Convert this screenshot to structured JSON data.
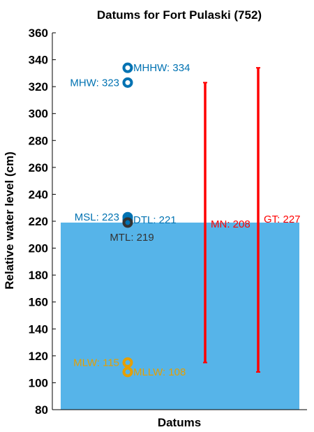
{
  "chart_data": {
    "type": "scatter",
    "title": "Datums for Fort Pulaski (752)",
    "xlabel": "Datums",
    "ylabel": "Relative water level (cm)",
    "ylim": [
      80,
      360
    ],
    "yticks": [
      80,
      100,
      120,
      140,
      160,
      180,
      200,
      220,
      240,
      260,
      280,
      300,
      320,
      340,
      360
    ],
    "grid": false,
    "background_fill": {
      "from": 80,
      "to": 219,
      "color": "#56b4e9"
    },
    "colors": {
      "high": "#1f77b4",
      "mid": "#0b6fa4",
      "mtl": "#333333",
      "low": "#e69f00",
      "range": "#ff0000"
    },
    "points": [
      {
        "label": "MHHW: 334",
        "value": 334,
        "color": "#0072b2",
        "label_side": "right"
      },
      {
        "label": "MHW: 323",
        "value": 323,
        "color": "#0072b2",
        "label_side": "left"
      },
      {
        "label": "MSL: 223",
        "value": 223,
        "color": "#0072b2",
        "label_side": "left"
      },
      {
        "label": "DTL: 221",
        "value": 221,
        "color": "#0072b2",
        "label_side": "right"
      },
      {
        "label": "MTL: 219",
        "value": 219,
        "color": "#333333",
        "label_side": "below"
      },
      {
        "label": "MLW: 115",
        "value": 115,
        "color": "#e69f00",
        "label_side": "left"
      },
      {
        "label": "MLLW: 108",
        "value": 108,
        "color": "#e69f00",
        "label_side": "right"
      }
    ],
    "ranges": [
      {
        "label": "MN: 208",
        "low": 115,
        "high": 323,
        "color": "#ff0000"
      },
      {
        "label": "GT: 227",
        "low": 108,
        "high": 334,
        "color": "#ff0000"
      }
    ]
  }
}
